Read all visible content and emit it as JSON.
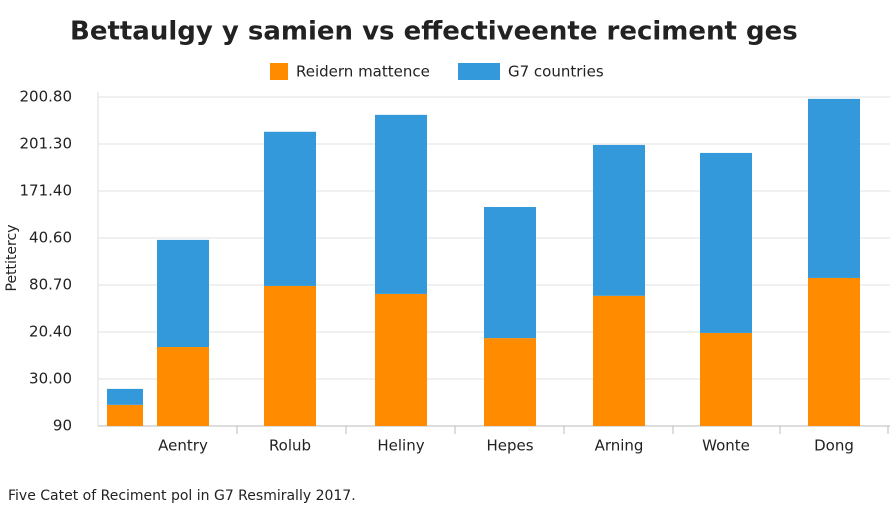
{
  "chart_data": {
    "type": "bar",
    "stacked": true,
    "title": "Bettaulgy y samien vs effectiveente reciment ges",
    "y_label": "Pettitercy",
    "caption": "Five Catet of Reciment pol in G7 Resmirally 2017.",
    "categories": [
      null,
      "Aentry",
      "Rolub",
      "Heliny",
      "Hepes",
      "Arning",
      "Wonte",
      "Dong"
    ],
    "series": [
      {
        "name": "Reidern mattence",
        "color": "#ff8c00",
        "values": [
          0.45,
          1.68,
          2.98,
          2.81,
          1.87,
          2.77,
          1.98,
          3.15
        ]
      },
      {
        "name": "G7 countries",
        "color": "#3399db",
        "values": [
          0.34,
          2.28,
          3.28,
          3.81,
          2.79,
          3.21,
          3.83,
          3.81
        ]
      }
    ],
    "ylim": [
      0,
      7
    ],
    "yticks": [
      {
        "value": 0,
        "label": "90"
      },
      {
        "value": 1,
        "label": "30.00"
      },
      {
        "value": 2,
        "label": "20.40"
      },
      {
        "value": 3,
        "label": "80.70"
      },
      {
        "value": 4,
        "label": "40.60"
      },
      {
        "value": 5,
        "label": "171.40"
      },
      {
        "value": 6,
        "label": "201.30"
      },
      {
        "value": 7,
        "label": "200.80"
      }
    ],
    "grid": true
  }
}
